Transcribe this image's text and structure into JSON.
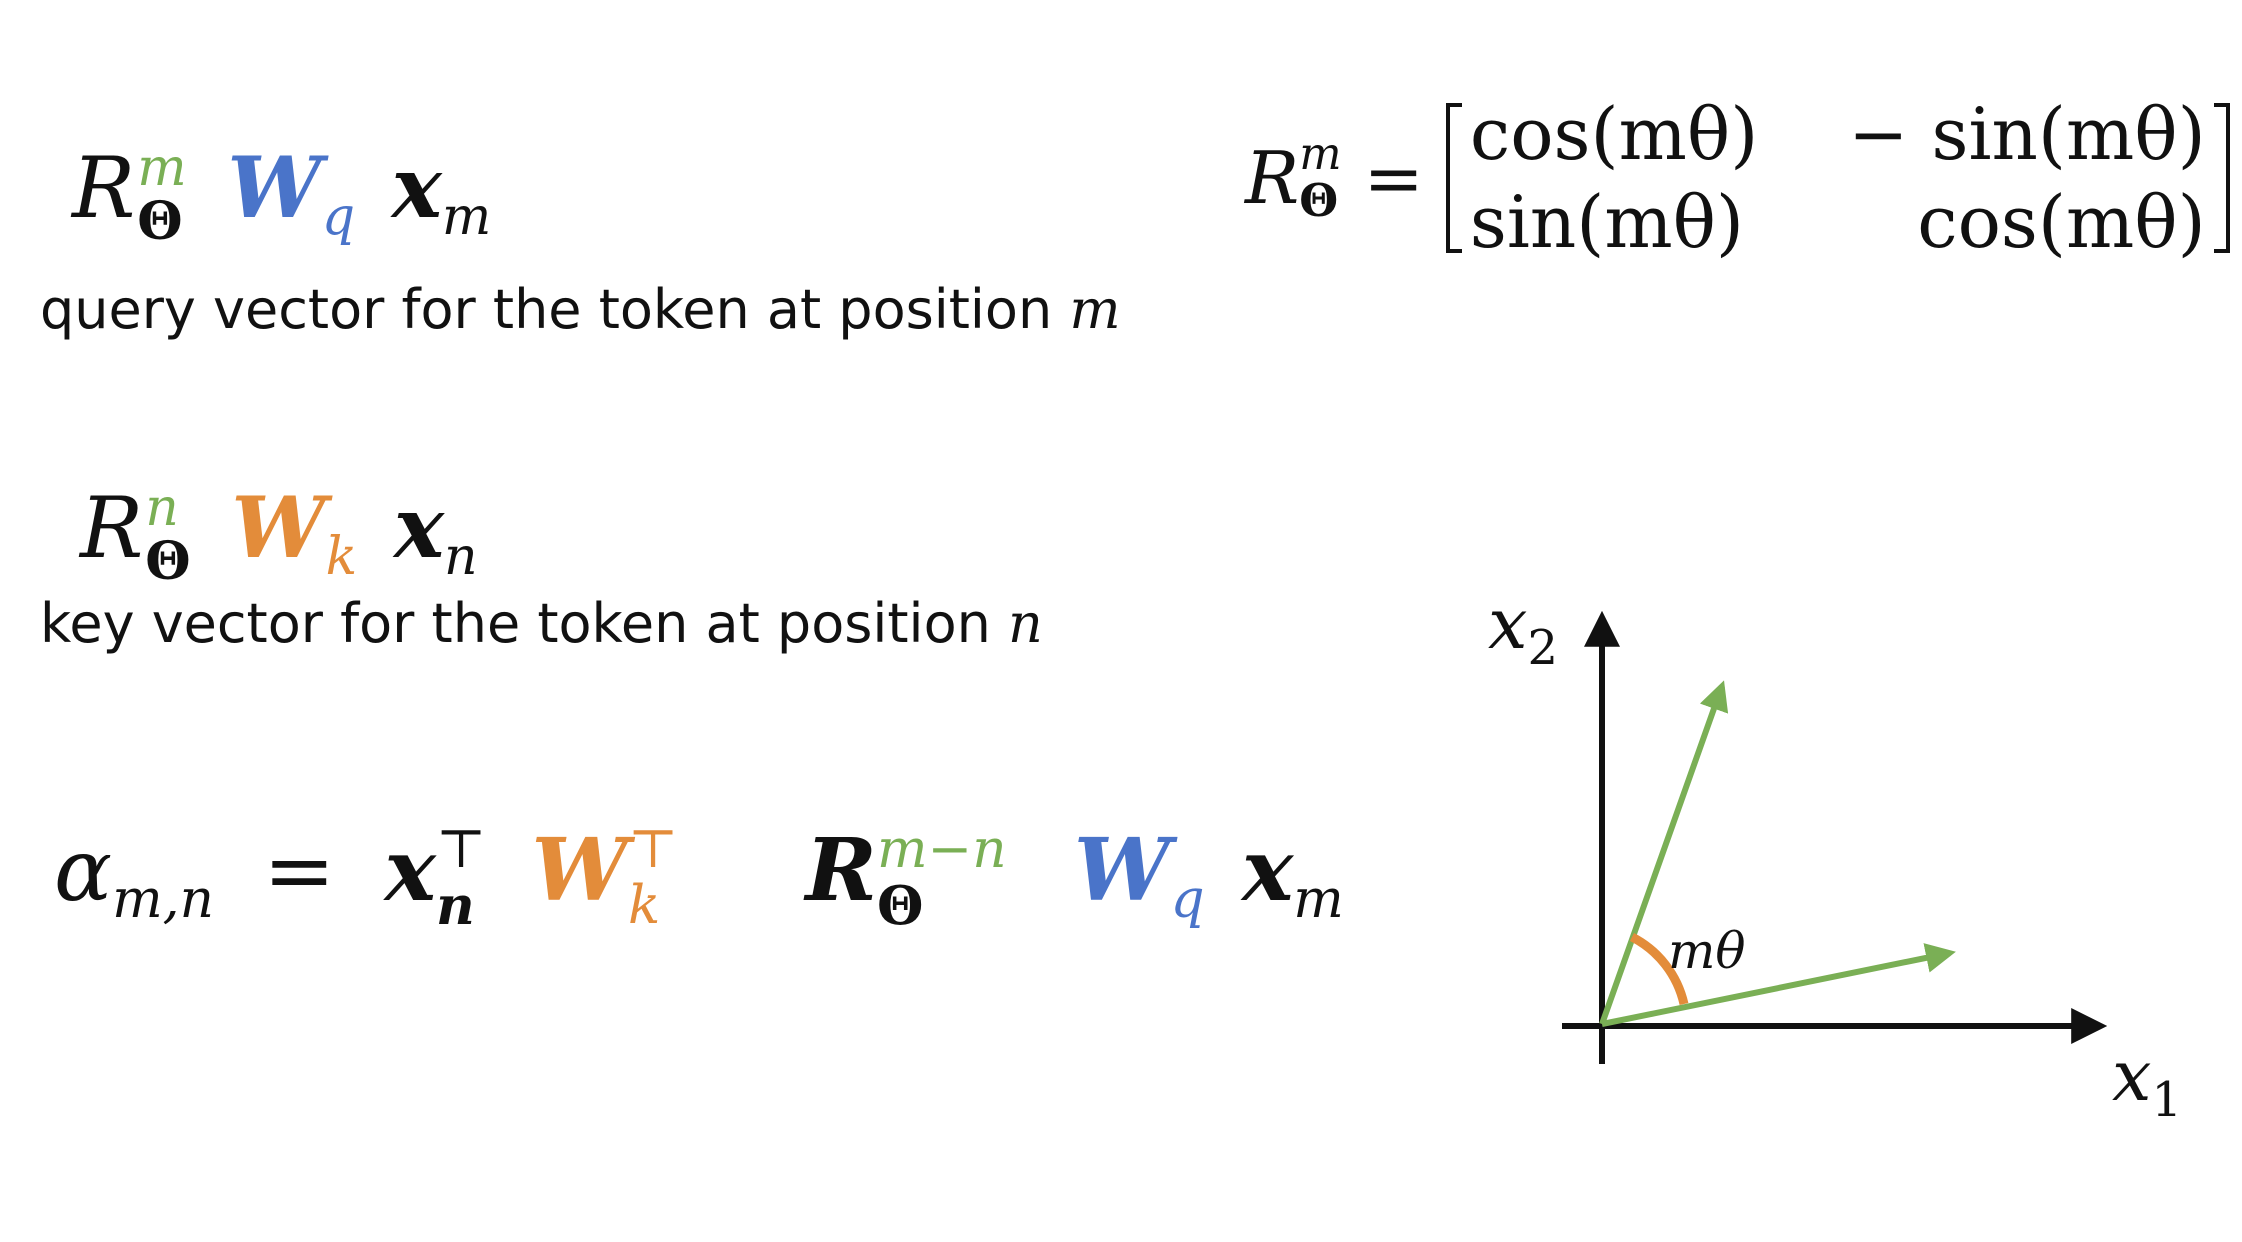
{
  "colors": {
    "green": "#7aaf55",
    "blue": "#4a74c9",
    "orange": "#e38c3a",
    "ink": "#111111"
  },
  "query": {
    "R": "R",
    "R_sup": "m",
    "R_sub": "Θ",
    "W": "W",
    "W_sub": "q",
    "x": "x",
    "x_sub": "m",
    "caption": "query vector for the token at position",
    "caption_var": "m"
  },
  "key": {
    "R": "R",
    "R_sup": "n",
    "R_sub": "Θ",
    "W": "W",
    "W_sub": "k",
    "x": "x",
    "x_sub": "n",
    "caption": "key vector for the token at position",
    "caption_var": "n"
  },
  "attention": {
    "alpha": "α",
    "alpha_sub": "m,n",
    "equals": "=",
    "x": "x",
    "x_sup": "⊤",
    "x_sub": "n",
    "Wk": "W",
    "Wk_sup": "⊤",
    "Wk_sub": "k",
    "R": "R",
    "R_sup": "m−n",
    "R_sub": "Θ",
    "Wq": "W",
    "Wq_sub": "q",
    "xm": "x",
    "xm_sub": "m"
  },
  "rotation": {
    "R": "R",
    "R_sup": "m",
    "R_sub": "Θ",
    "equals": "=",
    "matrix": [
      [
        "cos(mθ)",
        "− sin(mθ)"
      ],
      [
        "sin(mθ)",
        "cos(mθ)"
      ]
    ]
  },
  "diagram": {
    "x1_label": "x",
    "x1_sub": "1",
    "x2_label": "x",
    "x2_sub": "2",
    "angle_label": "mθ"
  }
}
